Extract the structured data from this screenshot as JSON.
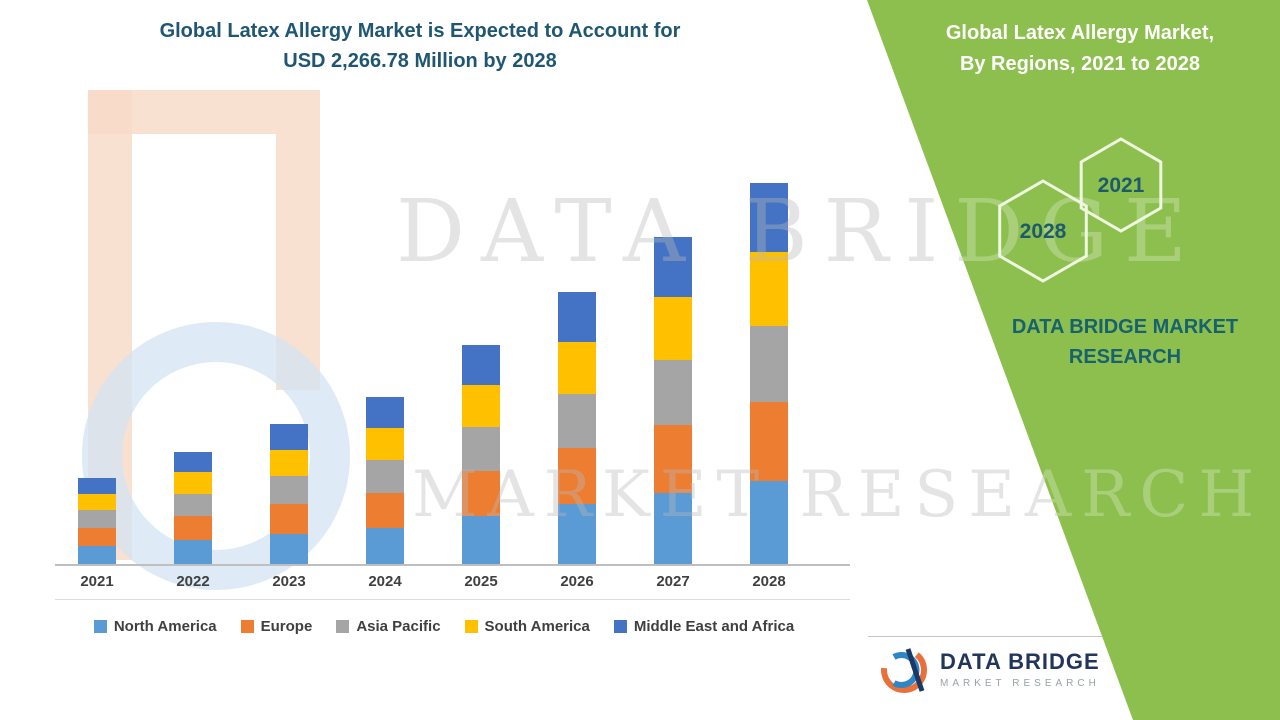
{
  "title": {
    "line1": "Global Latex Allergy Market is Expected to Account for",
    "line2": "USD 2,266.78 Million by 2028"
  },
  "side_panel": {
    "heading_line1": "Global Latex Allergy Market,",
    "heading_line2": "By Regions, 2021 to 2028",
    "hex_year_left": "2028",
    "hex_year_right": "2021",
    "brand_line1": "DATA BRIDGE MARKET",
    "brand_line2": "RESEARCH",
    "panel_color": "#8cbf4d"
  },
  "watermark": {
    "line1": "DATA BRIDGE",
    "line2": "MARKET RESEARCH"
  },
  "logo": {
    "name": "DATA BRIDGE",
    "subtitle": "MARKET RESEARCH"
  },
  "chart_data": {
    "type": "bar",
    "stacked": true,
    "title": "Global Latex Allergy Market is Expected to Account for USD 2,266.78 Million by 2028",
    "categories": [
      "2021",
      "2022",
      "2023",
      "2024",
      "2025",
      "2026",
      "2027",
      "2028"
    ],
    "series": [
      {
        "name": "North America",
        "color": "#5B9BD5",
        "values": [
          116,
          150,
          186,
          222,
          290,
          360,
          430,
          500
        ]
      },
      {
        "name": "Europe",
        "color": "#ED7D31",
        "values": [
          107,
          139,
          174,
          207,
          270,
          335,
          400,
          470
        ]
      },
      {
        "name": "Asia Pacific",
        "color": "#A5A5A5",
        "values": [
          102,
          133,
          166,
          197,
          258,
          320,
          385,
          450
        ]
      },
      {
        "name": "South America",
        "color": "#FFC000",
        "values": [
          98,
          128,
          159,
          190,
          250,
          310,
          375,
          440
        ]
      },
      {
        "name": "Middle East and Africa",
        "color": "#4472C4",
        "values": [
          93,
          120,
          151,
          180,
          237,
          294,
          355,
          406.78
        ]
      }
    ],
    "totals": [
      516,
      670,
      836,
      996,
      1305,
      1619,
      1945,
      2266.78
    ],
    "unit": "USD Million",
    "ylim": [
      0,
      2266.78
    ],
    "grid": false,
    "legend_position": "bottom"
  }
}
